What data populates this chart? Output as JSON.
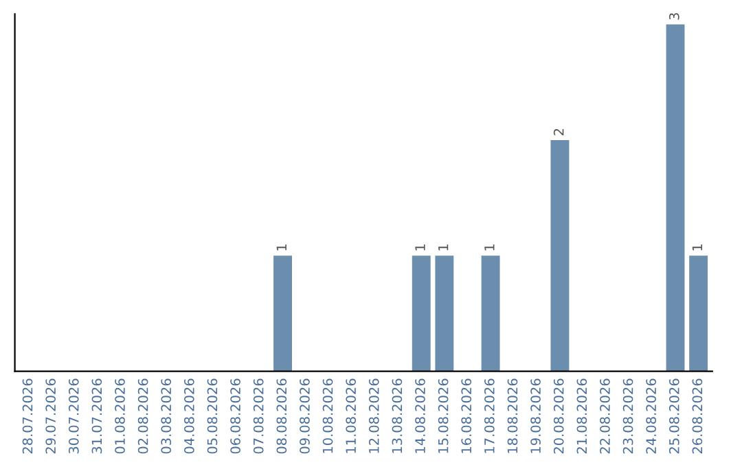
{
  "chart_data": {
    "type": "bar",
    "categories": [
      "28.07.2026",
      "29.07.2026",
      "30.07.2026",
      "31.07.2026",
      "01.08.2026",
      "02.08.2026",
      "03.08.2026",
      "04.08.2026",
      "05.08.2026",
      "06.08.2026",
      "07.08.2026",
      "08.08.2026",
      "09.08.2026",
      "10.08.2026",
      "11.08.2026",
      "12.08.2026",
      "13.08.2026",
      "14.08.2026",
      "15.08.2026",
      "16.08.2026",
      "17.08.2026",
      "18.08.2026",
      "19.08.2026",
      "20.08.2026",
      "21.08.2026",
      "22.08.2026",
      "23.08.2026",
      "24.08.2026",
      "25.08.2026",
      "26.08.2026"
    ],
    "values": [
      0,
      0,
      0,
      0,
      0,
      0,
      0,
      0,
      0,
      0,
      0,
      1,
      0,
      0,
      0,
      0,
      0,
      1,
      1,
      0,
      1,
      0,
      0,
      2,
      0,
      0,
      0,
      0,
      3,
      1
    ],
    "value_labels": [
      null,
      null,
      null,
      null,
      null,
      null,
      null,
      null,
      null,
      null,
      null,
      "1",
      null,
      null,
      null,
      null,
      null,
      "1",
      "1",
      null,
      "1",
      null,
      null,
      "2",
      null,
      null,
      null,
      null,
      "3",
      "1"
    ],
    "color": "#6b8eae",
    "tick_labels": "x",
    "grid": false,
    "legend": false
  }
}
